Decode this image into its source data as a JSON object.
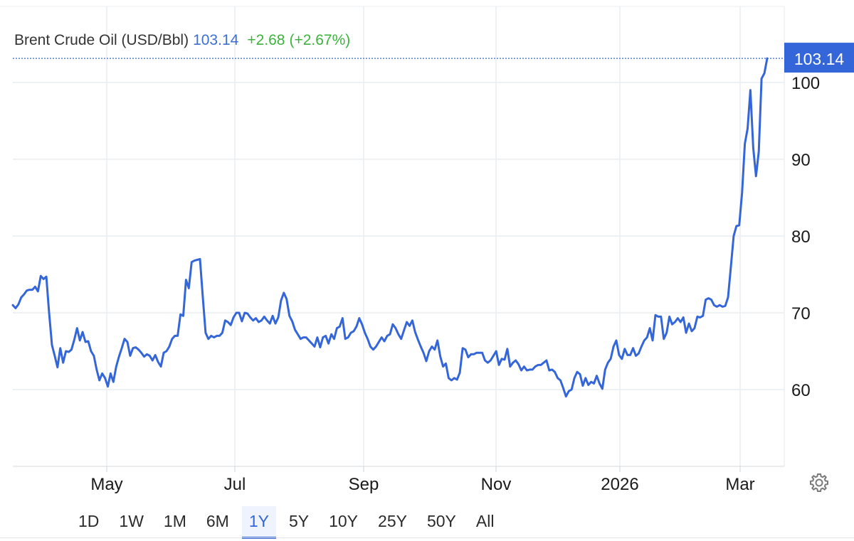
{
  "header": {
    "title": "Brent Crude Oil (USD/Bbl)",
    "price": "103.14",
    "change": "+2.68",
    "change_pct": "(+2.67%)"
  },
  "price_tag": "103.14",
  "ranges": [
    "1D",
    "1W",
    "1M",
    "6M",
    "1Y",
    "5Y",
    "10Y",
    "25Y",
    "50Y",
    "All"
  ],
  "active_range": "1Y",
  "colors": {
    "line": "#3466d9",
    "up": "#3cb33c",
    "grid": "#e9eef2",
    "tag": "#3466d9"
  },
  "settings_icon": "gear-icon",
  "chart_data": {
    "type": "line",
    "title": "Brent Crude Oil (USD/Bbl)",
    "x_ticks": [
      "May",
      "Jul",
      "Sep",
      "Nov",
      "2026",
      "Mar"
    ],
    "y_ticks": [
      60,
      70,
      80,
      90,
      100
    ],
    "ylim": [
      50,
      106
    ],
    "grid": true,
    "last_value": 103.14,
    "series": [
      {
        "values": [
          71.0,
          70.6,
          71.1,
          72.0,
          72.4,
          72.9,
          73.0,
          73.0,
          73.4,
          72.8,
          74.8,
          74.4,
          74.7,
          70.0,
          65.8,
          64.4,
          62.9,
          65.4,
          63.5,
          65.0,
          64.9,
          65.2,
          66.5,
          68.0,
          66.4,
          67.5,
          66.2,
          66.3,
          65.0,
          64.4,
          62.6,
          61.2,
          62.1,
          61.5,
          60.4,
          62.1,
          61.0,
          63.0,
          64.3,
          65.4,
          66.6,
          66.2,
          64.4,
          65.4,
          65.5,
          65.2,
          64.8,
          64.3,
          64.6,
          64.4,
          63.8,
          64.5,
          63.6,
          63.0,
          64.8,
          65.0,
          65.6,
          66.6,
          67.0,
          67.0,
          69.8,
          69.6,
          74.3,
          73.2,
          76.6,
          76.8,
          76.9,
          77.0,
          72.0,
          67.4,
          66.6,
          67.0,
          66.8,
          67.0,
          67.0,
          67.4,
          69.0,
          68.8,
          68.4,
          69.4,
          70.0,
          70.0,
          68.9,
          70.0,
          69.9,
          69.4,
          69.0,
          69.3,
          68.8,
          69.0,
          69.5,
          69.0,
          68.6,
          69.6,
          68.6,
          69.4,
          71.6,
          72.6,
          71.8,
          69.6,
          68.9,
          67.8,
          67.2,
          66.6,
          66.8,
          66.8,
          66.4,
          66.0,
          65.6,
          66.8,
          65.5,
          66.8,
          67.0,
          66.0,
          67.2,
          66.6,
          68.0,
          68.2,
          69.3,
          66.6,
          66.8,
          67.4,
          67.6,
          68.2,
          69.3,
          68.5,
          67.4,
          66.6,
          65.6,
          65.2,
          65.6,
          66.2,
          66.8,
          66.3,
          67.0,
          67.2,
          68.5,
          68.0,
          67.2,
          66.6,
          67.7,
          68.8,
          68.3,
          69.0,
          67.5,
          66.5,
          65.6,
          64.8,
          63.7,
          65.0,
          65.6,
          65.2,
          66.4,
          64.3,
          63.0,
          63.4,
          61.5,
          61.2,
          61.5,
          61.3,
          62.2,
          65.4,
          65.2,
          64.2,
          64.6,
          64.6,
          64.8,
          64.8,
          64.8,
          63.8,
          63.5,
          63.8,
          64.4,
          65.0,
          63.2,
          64.0,
          63.9,
          65.3,
          63.0,
          63.5,
          63.8,
          63.3,
          62.5,
          63.0,
          62.5,
          62.6,
          62.6,
          63.0,
          63.2,
          63.2,
          63.5,
          63.8,
          62.5,
          62.6,
          62.3,
          61.5,
          61.2,
          60.2,
          59.1,
          59.8,
          60.0,
          61.5,
          62.3,
          62.0,
          60.5,
          61.5,
          60.6,
          61.0,
          60.8,
          61.8,
          60.8,
          60.1,
          62.6,
          63.5,
          64.0,
          65.6,
          66.4,
          64.5,
          64.0,
          65.3,
          64.5,
          64.5,
          65.4,
          64.4,
          64.7,
          65.6,
          66.4,
          66.8,
          68.0,
          66.4,
          69.7,
          69.5,
          69.5,
          66.6,
          67.4,
          69.5,
          68.5,
          68.8,
          69.3,
          68.8,
          69.4,
          67.4,
          68.6,
          67.6,
          68.0,
          69.5,
          69.4,
          69.6,
          71.7,
          71.9,
          71.7,
          71.0,
          70.8,
          71.0,
          70.8,
          70.9,
          72.0,
          76.0,
          80.0,
          81.3,
          81.4,
          85.6,
          92.0,
          94.0,
          99.0,
          91.5,
          87.8,
          91.0,
          100.5,
          101.2,
          103.14
        ]
      }
    ]
  }
}
